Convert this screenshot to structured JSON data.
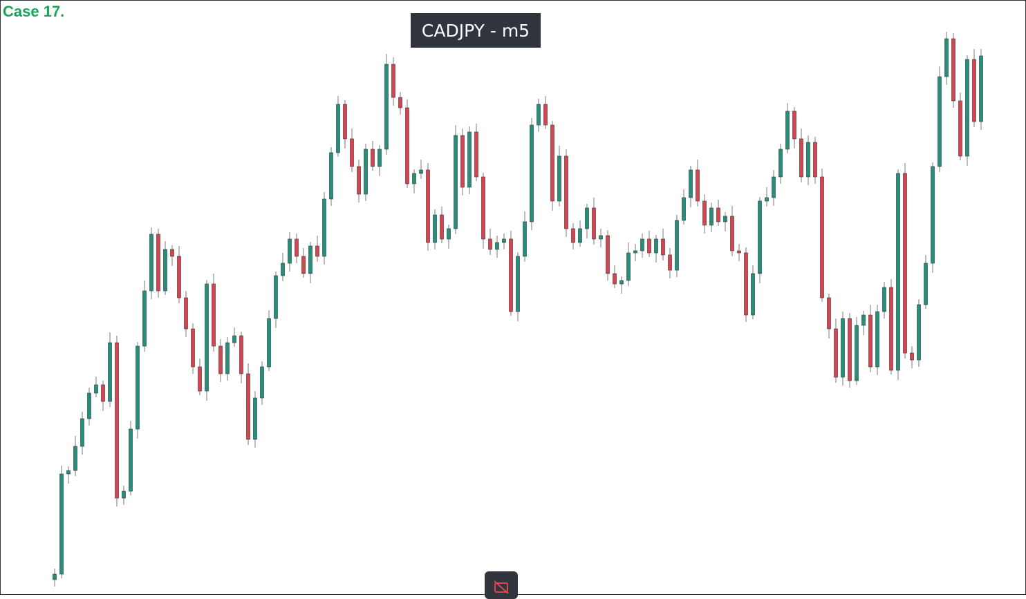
{
  "header": {
    "title": "Case 17."
  },
  "chart_data": {
    "type": "candlestick",
    "title": "CADJPY - m5",
    "open": [
      23,
      31,
      176,
      181,
      216,
      256,
      293,
      305,
      281,
      366,
      141,
      151,
      241,
      361,
      441,
      523,
      441,
      501,
      491,
      431,
      386,
      331,
      296,
      451,
      361,
      321,
      366,
      376,
      321,
      226,
      286,
      331,
      401,
      463,
      481,
      516,
      491,
      466,
      506,
      491,
      574,
      641,
      711,
      661,
      621,
      581,
      646,
      621,
      646,
      769,
      721,
      706,
      596,
      611,
      616,
      511,
      551,
      516,
      531,
      666,
      591,
      671,
      606,
      516,
      501,
      511,
      516,
      411,
      491,
      541,
      681,
      711,
      681,
      571,
      636,
      531,
      511,
      531,
      561,
      516,
      521,
      466,
      451,
      456,
      496,
      499,
      516,
      496,
      516,
      493,
      471,
      543,
      576,
      616,
      571,
      536,
      561,
      541,
      549,
      499,
      496,
      406,
      466,
      571,
      576,
      606,
      646,
      701,
      661,
      606,
      656,
      606,
      431,
      386,
      316,
      401,
      311,
      391,
      406,
      331,
      411,
      446,
      326,
      611,
      351,
      341,
      421,
      481,
      621,
      751,
      806,
      716,
      636,
      776,
      686
    ],
    "high": [
      39,
      188,
      187,
      231,
      266,
      301,
      317,
      311,
      381,
      376,
      159,
      253,
      367,
      456,
      533,
      531,
      513,
      507,
      506,
      441,
      394,
      343,
      457,
      466,
      371,
      374,
      388,
      382,
      336,
      296,
      339,
      413,
      469,
      496,
      526,
      524,
      503,
      512,
      521,
      584,
      649,
      723,
      717,
      676,
      631,
      654,
      658,
      652,
      784,
      779,
      729,
      718,
      617,
      631,
      626,
      559,
      563,
      537,
      681,
      676,
      679,
      683,
      612,
      531,
      521,
      524,
      528,
      497,
      556,
      691,
      719,
      723,
      687,
      651,
      646,
      539,
      543,
      567,
      576,
      531,
      529,
      478,
      462,
      511,
      509,
      524,
      528,
      522,
      531,
      503,
      551,
      588,
      622,
      631,
      581,
      569,
      573,
      555,
      564,
      509,
      504,
      478,
      577,
      591,
      616,
      654,
      713,
      707,
      676,
      666,
      664,
      618,
      437,
      401,
      411,
      409,
      403,
      412,
      421,
      421,
      454,
      458,
      617,
      626,
      361,
      429,
      493,
      627,
      766,
      816,
      814,
      728,
      782,
      791,
      791
    ],
    "low": [
      13,
      25,
      162,
      173,
      204,
      246,
      287,
      267,
      273,
      129,
      131,
      145,
      227,
      353,
      429,
      431,
      435,
      477,
      423,
      374,
      321,
      290,
      282,
      353,
      309,
      311,
      360,
      307,
      218,
      214,
      276,
      325,
      387,
      455,
      469,
      481,
      460,
      452,
      483,
      479,
      564,
      635,
      647,
      613,
      569,
      571,
      615,
      607,
      638,
      709,
      696,
      590,
      582,
      603,
      499,
      501,
      510,
      502,
      523,
      579,
      581,
      600,
      502,
      493,
      489,
      501,
      405,
      397,
      483,
      529,
      671,
      675,
      557,
      563,
      519,
      501,
      505,
      517,
      508,
      504,
      456,
      445,
      437,
      448,
      484,
      489,
      490,
      482,
      485,
      459,
      461,
      537,
      562,
      563,
      524,
      526,
      535,
      527,
      491,
      484,
      396,
      400,
      452,
      563,
      564,
      596,
      640,
      647,
      598,
      594,
      596,
      425,
      372,
      308,
      304,
      301,
      305,
      377,
      323,
      319,
      401,
      320,
      312,
      343,
      329,
      331,
      415,
      467,
      613,
      739,
      706,
      630,
      622,
      678,
      674
    ],
    "close": [
      31,
      176,
      181,
      216,
      256,
      293,
      305,
      281,
      366,
      141,
      151,
      241,
      361,
      441,
      523,
      441,
      501,
      491,
      431,
      386,
      331,
      296,
      451,
      361,
      321,
      366,
      376,
      321,
      226,
      286,
      331,
      401,
      463,
      481,
      516,
      491,
      466,
      506,
      491,
      574,
      641,
      711,
      661,
      621,
      581,
      646,
      621,
      646,
      769,
      721,
      706,
      596,
      611,
      616,
      511,
      551,
      516,
      531,
      666,
      591,
      671,
      606,
      516,
      501,
      511,
      516,
      411,
      491,
      541,
      681,
      711,
      681,
      571,
      636,
      531,
      511,
      531,
      561,
      516,
      521,
      466,
      451,
      456,
      496,
      499,
      516,
      496,
      516,
      493,
      471,
      543,
      576,
      616,
      571,
      536,
      561,
      541,
      549,
      499,
      496,
      406,
      466,
      571,
      576,
      606,
      646,
      701,
      661,
      606,
      656,
      606,
      431,
      386,
      316,
      401,
      311,
      391,
      406,
      331,
      411,
      446,
      326,
      611,
      351,
      341,
      421,
      481,
      621,
      751,
      806,
      716,
      636,
      776,
      686,
      781
    ],
    "ylim": [
      0,
      861
    ],
    "up_color": "#22907a",
    "down_color": "#d9434f"
  }
}
